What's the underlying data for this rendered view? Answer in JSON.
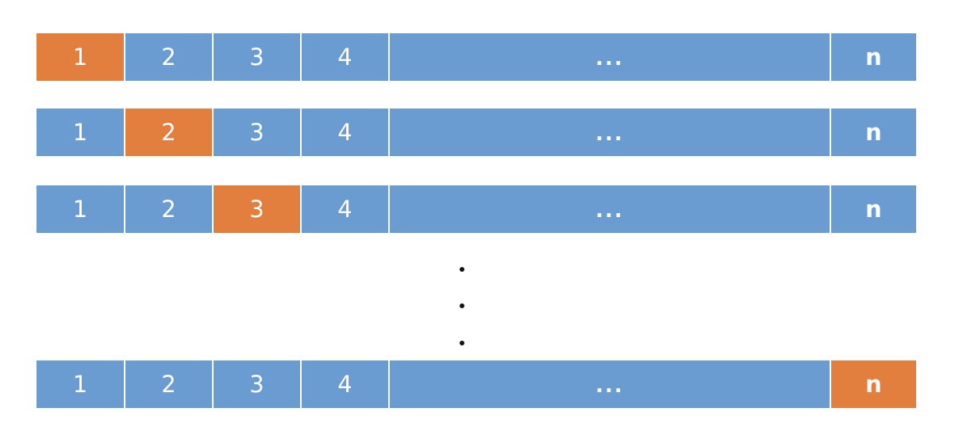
{
  "colors": {
    "cell_default": "#6a9bd1",
    "cell_highlight": "#e27f3f",
    "text": "#ffffff",
    "vertical_dots": "#111111"
  },
  "rows": [
    {
      "highlight_index": 0,
      "cells": [
        "1",
        "2",
        "3",
        "4",
        "...",
        "n"
      ]
    },
    {
      "highlight_index": 1,
      "cells": [
        "1",
        "2",
        "3",
        "4",
        "...",
        "n"
      ]
    },
    {
      "highlight_index": 2,
      "cells": [
        "1",
        "2",
        "3",
        "4",
        "...",
        "n"
      ]
    },
    {
      "highlight_index": 5,
      "cells": [
        "1",
        "2",
        "3",
        "4",
        "...",
        "n"
      ]
    }
  ],
  "vertical_ellipsis": [
    "•",
    "•",
    "•"
  ]
}
